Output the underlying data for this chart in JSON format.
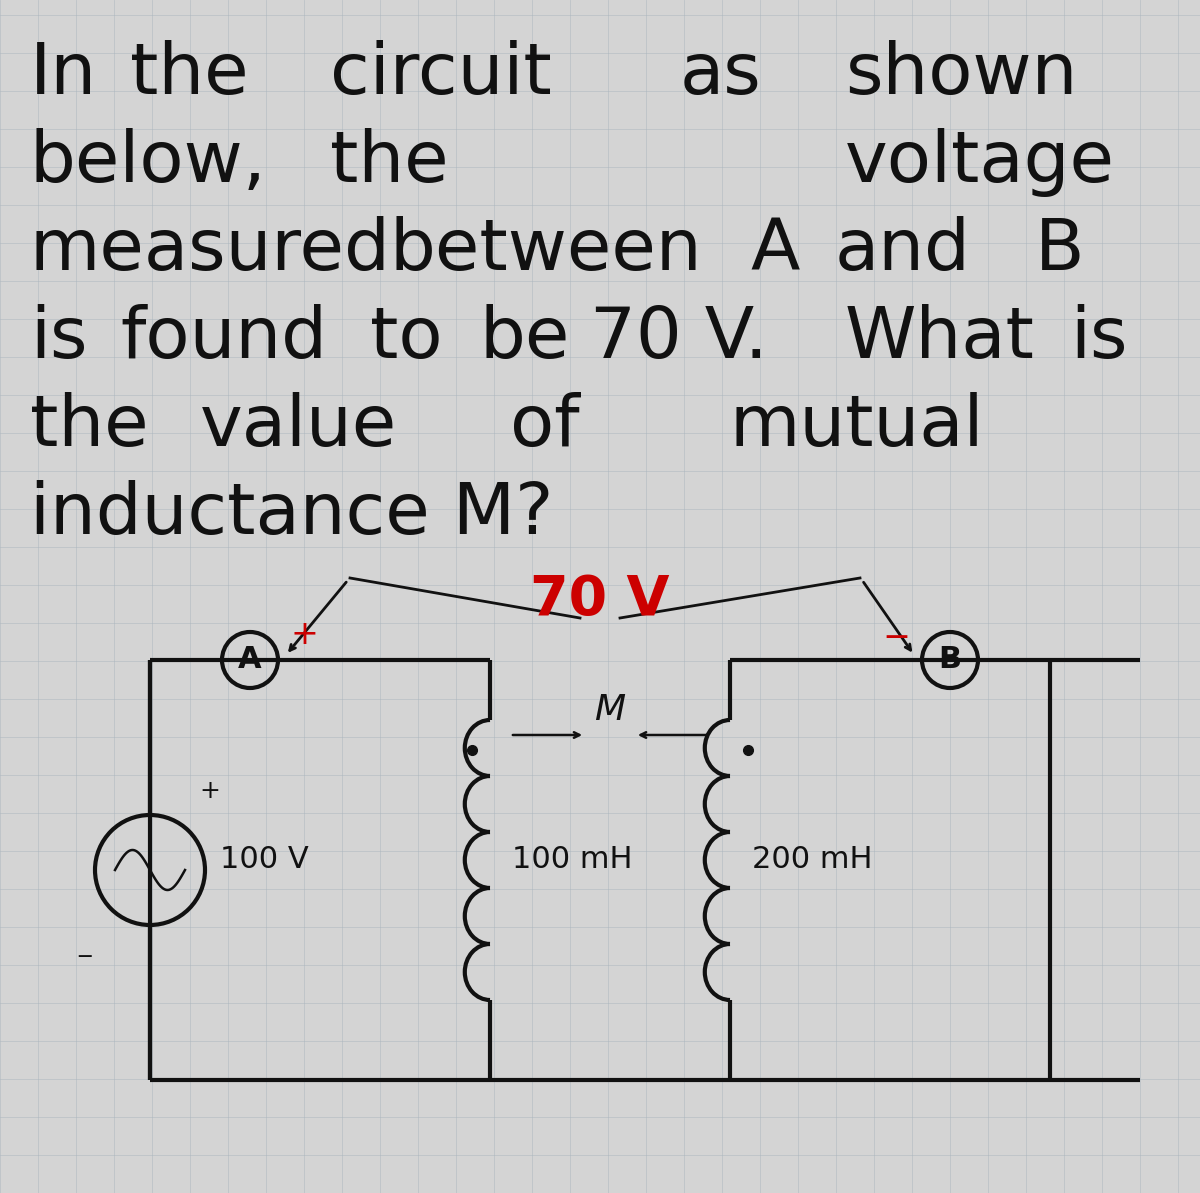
{
  "bg_color": "#d4d4d4",
  "text_color": "#111111",
  "voltage_label": "70 V",
  "voltage_label_color": "#cc0000",
  "source_voltage": "100 V",
  "L1_label": "100 mH",
  "L2_label": "200 mH",
  "M_label": "M",
  "node_A": "A",
  "node_B": "B",
  "circuit_color": "#111111",
  "grid_color": "#aab5be",
  "font_size_text": 52,
  "font_size_circuit": 22,
  "line_width": 3.0
}
